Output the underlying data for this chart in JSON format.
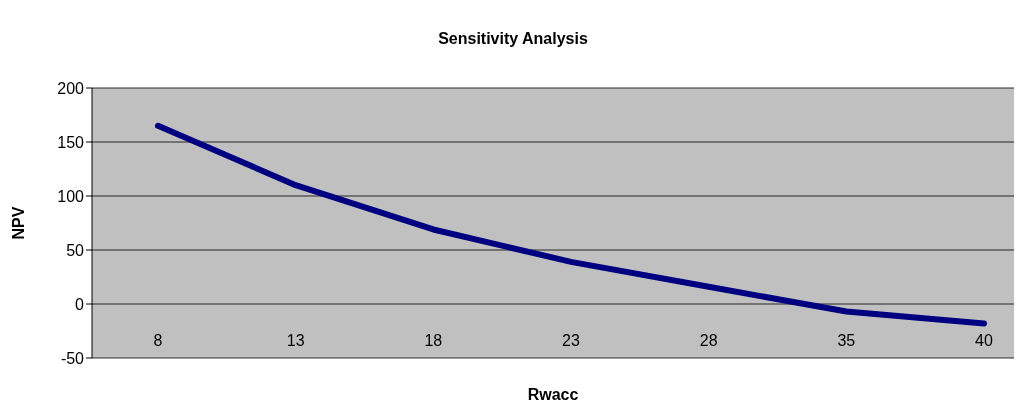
{
  "chart_data": {
    "type": "line",
    "title": "Sensitivity Analysis",
    "xlabel": "Rwacc",
    "ylabel": "NPV",
    "categories": [
      "8",
      "13",
      "18",
      "23",
      "28",
      "35",
      "40"
    ],
    "series": [
      {
        "color": "#000080",
        "values": [
          165,
          110,
          69,
          39,
          16,
          -7,
          -18
        ]
      }
    ],
    "ylim": [
      -50,
      200
    ],
    "yticks": [
      -50,
      0,
      50,
      100,
      150,
      200
    ],
    "grid": "y",
    "legend": false,
    "marker": "none",
    "line_style": "solid"
  }
}
